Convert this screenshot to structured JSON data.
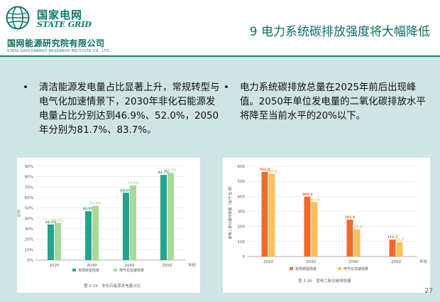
{
  "header": {
    "logo_cn": "国家电网",
    "logo_en": "STATE GRID",
    "inst_cn": "国网能源研究院有限公司",
    "inst_en": "STATE GRID ENERGY RESEARCH INSTITUTE CO., LTD.",
    "title": "9 电力系统碳排放强度将大幅降低"
  },
  "bullets": [
    {
      "marker": "•",
      "text": "清洁能源发电量占比显著上升，常规转型与电气化加速情景下，2030年非化石能源发电量占比分别达到46.9%、52.0%，2050年分别为81.7%、83.7%。"
    },
    {
      "marker": "•",
      "text": "电力系统碳排放总量在2025年前后出现峰值。2050年单位发电量的二氧化碳排放水平将降至当前水平的20%以下。"
    }
  ],
  "colors": {
    "brand": "#0d7a6a",
    "content_bg": "#cfe5e4",
    "chart1_series1": "#26a38a",
    "chart1_series2": "#a8d99a",
    "chart2_series1": "#f06a2a",
    "chart2_series2": "#f8c060"
  },
  "chart_data": [
    {
      "type": "bar",
      "categories": [
        "2020",
        "2030",
        "2040",
        "2050"
      ],
      "series": [
        {
          "name": "常规转型情景",
          "values": [
            34.2,
            46.9,
            64.6,
            81.7
          ]
        },
        {
          "name": "电气化加速情景",
          "values": [
            35.6,
            52.0,
            71.6,
            83.7
          ]
        }
      ],
      "data_labels": [
        [
          "34.2%",
          "46.9%",
          "64.6%",
          "81.7%"
        ],
        [
          "35.6%",
          "52.0%",
          "71.6%",
          "83.7%"
        ]
      ],
      "yticks": [
        "0%",
        "10%",
        "20%",
        "30%",
        "40%",
        "50%",
        "60%",
        "70%",
        "80%",
        "90%"
      ],
      "ylim": [
        0,
        90
      ],
      "ylabel": "比例",
      "xlabel": "年份",
      "caption": "图 3-29　非化石能源发电量占比",
      "legend": "bottom"
    },
    {
      "type": "bar",
      "categories": [
        "2020",
        "2030",
        "2040",
        "2050"
      ],
      "series": [
        {
          "name": "常规转型情景",
          "values": [
            562.0,
            398.0,
            245.0,
            112.7
          ]
        },
        {
          "name": "电气化加速情景",
          "values": [
            550.0,
            362.0,
            181.0,
            95.5
          ]
        }
      ],
      "data_labels": [
        [
          "562.0",
          "398.0",
          "245.0",
          "112.7"
        ],
        [
          "550.0",
          "362.0",
          "181.0",
          "95.5"
        ]
      ],
      "yticks": [
        "0",
        "100",
        "200",
        "300",
        "400",
        "500",
        "600"
      ],
      "ylim": [
        0,
        600
      ],
      "ylabel": "度电二氧化碳排放量（克/千瓦·时）",
      "xlabel": "年份",
      "caption": "图 3-30　度电二氧化碳排放量",
      "legend": "bottom"
    }
  ],
  "page_number": "27"
}
